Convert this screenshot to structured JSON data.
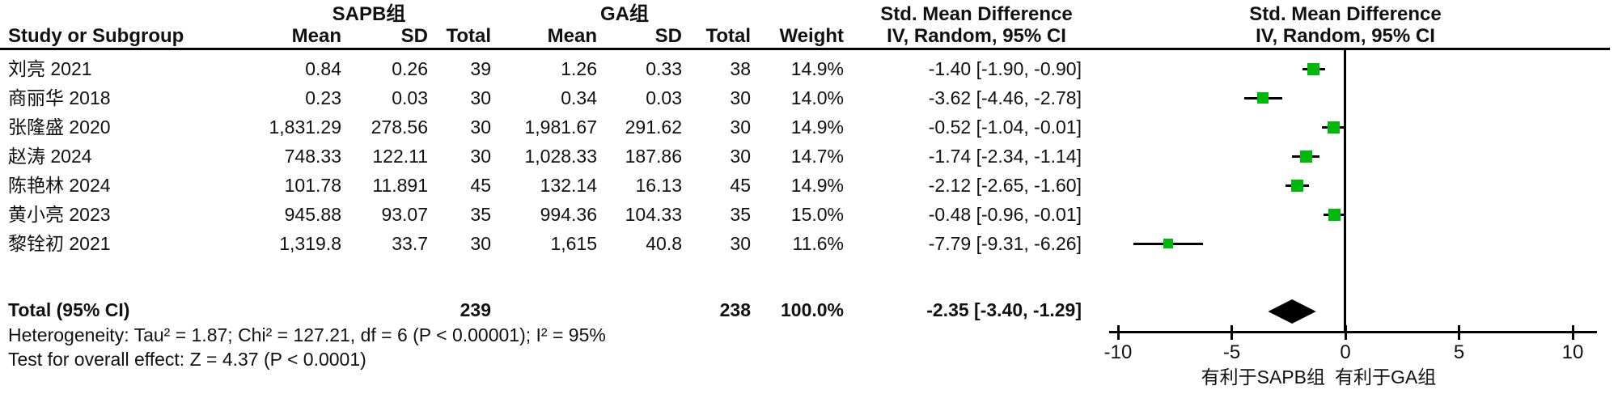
{
  "table": {
    "group1_header": "SAPB组",
    "group2_header": "GA组",
    "effect_header": "Std. Mean Difference",
    "effect_subheader": "IV, Random, 95% CI",
    "plot_header": "Std. Mean Difference",
    "plot_subheader": "IV, Random, 95% CI",
    "col_study": "Study or Subgroup",
    "col_mean1": "Mean",
    "col_sd1": "SD",
    "col_total1": "Total",
    "col_mean2": "Mean",
    "col_sd2": "SD",
    "col_total2": "Total",
    "col_weight": "Weight",
    "rows": [
      {
        "study": "刘亮 2021",
        "mean1": "0.84",
        "sd1": "0.26",
        "total1": "39",
        "mean2": "1.26",
        "sd2": "0.33",
        "total2": "38",
        "weight": "14.9%",
        "ci": "-1.40 [-1.90, -0.90]"
      },
      {
        "study": "商丽华 2018",
        "mean1": "0.23",
        "sd1": "0.03",
        "total1": "30",
        "mean2": "0.34",
        "sd2": "0.03",
        "total2": "30",
        "weight": "14.0%",
        "ci": "-3.62 [-4.46, -2.78]"
      },
      {
        "study": "张隆盛 2020",
        "mean1": "1,831.29",
        "sd1": "278.56",
        "total1": "30",
        "mean2": "1,981.67",
        "sd2": "291.62",
        "total2": "30",
        "weight": "14.9%",
        "ci": "-0.52 [-1.04, -0.01]"
      },
      {
        "study": "赵涛 2024",
        "mean1": "748.33",
        "sd1": "122.11",
        "total1": "30",
        "mean2": "1,028.33",
        "sd2": "187.86",
        "total2": "30",
        "weight": "14.7%",
        "ci": "-1.74 [-2.34, -1.14]"
      },
      {
        "study": "陈艳林 2024",
        "mean1": "101.78",
        "sd1": "11.891",
        "total1": "45",
        "mean2": "132.14",
        "sd2": "16.13",
        "total2": "45",
        "weight": "14.9%",
        "ci": "-2.12 [-2.65, -1.60]"
      },
      {
        "study": "黄小亮 2023",
        "mean1": "945.88",
        "sd1": "93.07",
        "total1": "35",
        "mean2": "994.36",
        "sd2": "104.33",
        "total2": "35",
        "weight": "15.0%",
        "ci": "-0.48 [-0.96, -0.01]"
      },
      {
        "study": "黎铨初 2021",
        "mean1": "1,319.8",
        "sd1": "33.7",
        "total1": "30",
        "mean2": "1,615",
        "sd2": "40.8",
        "total2": "30",
        "weight": "11.6%",
        "ci": "-7.79 [-9.31, -6.26]"
      }
    ],
    "total_row": {
      "label": "Total (95% CI)",
      "total1": "239",
      "total2": "238",
      "weight": "100.0%",
      "ci": "-2.35 [-3.40, -1.29]"
    },
    "heterogeneity": "Heterogeneity: Tau² = 1.87; Chi² = 127.21, df = 6 (P < 0.00001); I² = 95%",
    "overall_effect": "Test for overall effect: Z = 4.37 (P < 0.0001)",
    "favor_left": "有利于SAPB组",
    "favor_right": "有利于GA组"
  },
  "chart_data": {
    "type": "forest",
    "effect_measure": "Std. Mean Difference (IV, Random, 95% CI)",
    "marker_color": "#00b80c",
    "diamond_color": "#000000",
    "studies": [
      {
        "label": "刘亮 2021",
        "est": -1.4,
        "lo": -1.9,
        "hi": -0.9,
        "weight_pct": 14.9
      },
      {
        "label": "商丽华 2018",
        "est": -3.62,
        "lo": -4.46,
        "hi": -2.78,
        "weight_pct": 14.0
      },
      {
        "label": "张隆盛 2020",
        "est": -0.52,
        "lo": -1.04,
        "hi": -0.01,
        "weight_pct": 14.9
      },
      {
        "label": "赵涛 2024",
        "est": -1.74,
        "lo": -2.34,
        "hi": -1.14,
        "weight_pct": 14.7
      },
      {
        "label": "陈艳林 2024",
        "est": -2.12,
        "lo": -2.65,
        "hi": -1.6,
        "weight_pct": 14.9
      },
      {
        "label": "黄小亮 2023",
        "est": -0.48,
        "lo": -0.96,
        "hi": -0.01,
        "weight_pct": 15.0
      },
      {
        "label": "黎铨初 2021",
        "est": -7.79,
        "lo": -9.31,
        "hi": -6.26,
        "weight_pct": 11.6
      }
    ],
    "total": {
      "label": "Total (95% CI)",
      "est": -2.35,
      "lo": -3.4,
      "hi": -1.29,
      "weight_pct": 100.0
    },
    "axis": {
      "ticks": [
        -10,
        -5,
        0,
        5,
        10
      ],
      "xlim": [
        -10.4,
        11.05
      ],
      "zero_line": 0
    }
  }
}
